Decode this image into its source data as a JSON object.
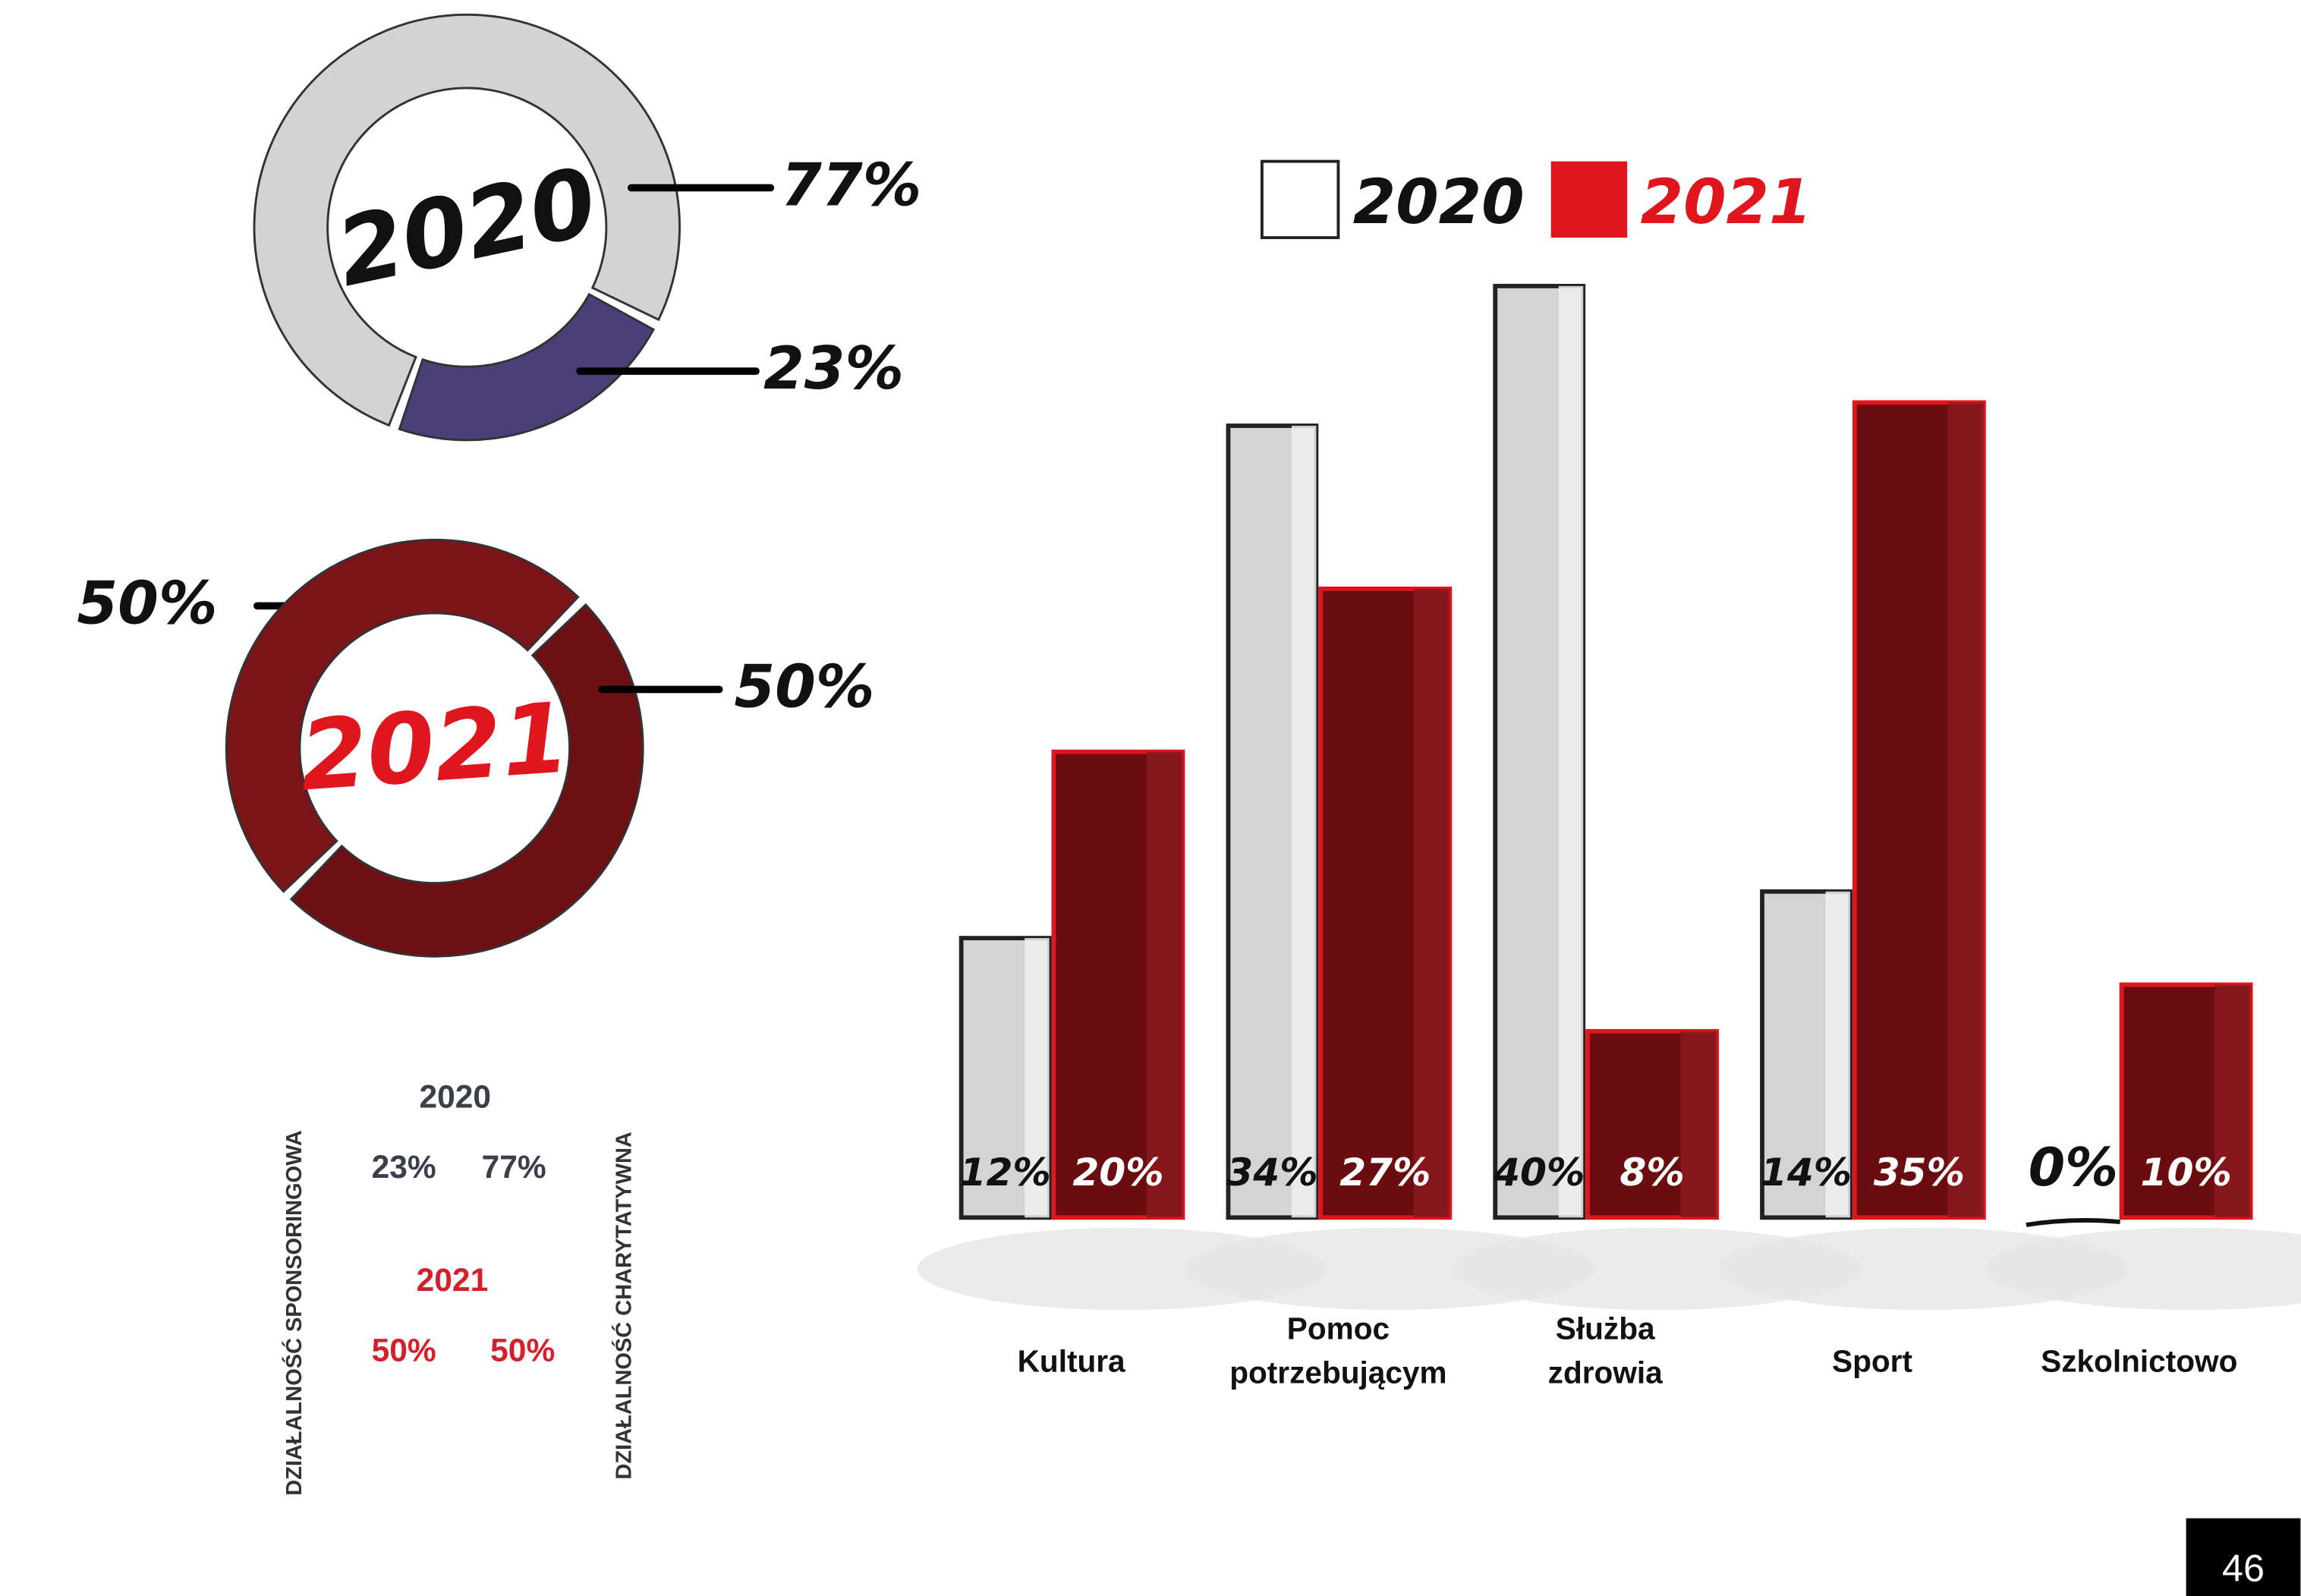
{
  "chart_data": [
    {
      "type": "pie",
      "title": "2020",
      "values": [
        77,
        23
      ],
      "value_labels": [
        "77%",
        "23%"
      ],
      "colors": [
        "#d3d3d3",
        "#4b3f78"
      ]
    },
    {
      "type": "pie",
      "title": "2021",
      "values": [
        50,
        50
      ],
      "value_labels": [
        "50%",
        "50%"
      ],
      "colors": [
        "#6d1013",
        "#7a1418"
      ]
    },
    {
      "type": "bar",
      "categories": [
        "Kultura",
        "Pomoc\npotrzebującym",
        "Służba\nzdrowia",
        "Sport",
        "Szkolnictowo"
      ],
      "series": [
        {
          "name": "2020",
          "color": "#d4d4d4",
          "values": [
            12,
            34,
            40,
            14,
            0
          ],
          "value_labels": [
            "12%",
            "34%",
            "40%",
            "14%",
            "0%"
          ]
        },
        {
          "name": "2021",
          "color": "#6a0d10",
          "values": [
            20,
            27,
            8,
            35,
            10
          ],
          "value_labels": [
            "20%",
            "27%",
            "8%",
            "35%",
            "10%"
          ]
        }
      ]
    }
  ],
  "side_labels": [
    "DZIAŁALNOŚĆ SPONSORINGOWA",
    "DZIAŁALNOŚĆ CHARYTATYWNA"
  ],
  "summary": [
    {
      "year": "2020",
      "values": [
        "23%",
        "77%"
      ]
    },
    {
      "year": "2021",
      "values": [
        "50%",
        "50%"
      ]
    }
  ],
  "page_number": "46"
}
